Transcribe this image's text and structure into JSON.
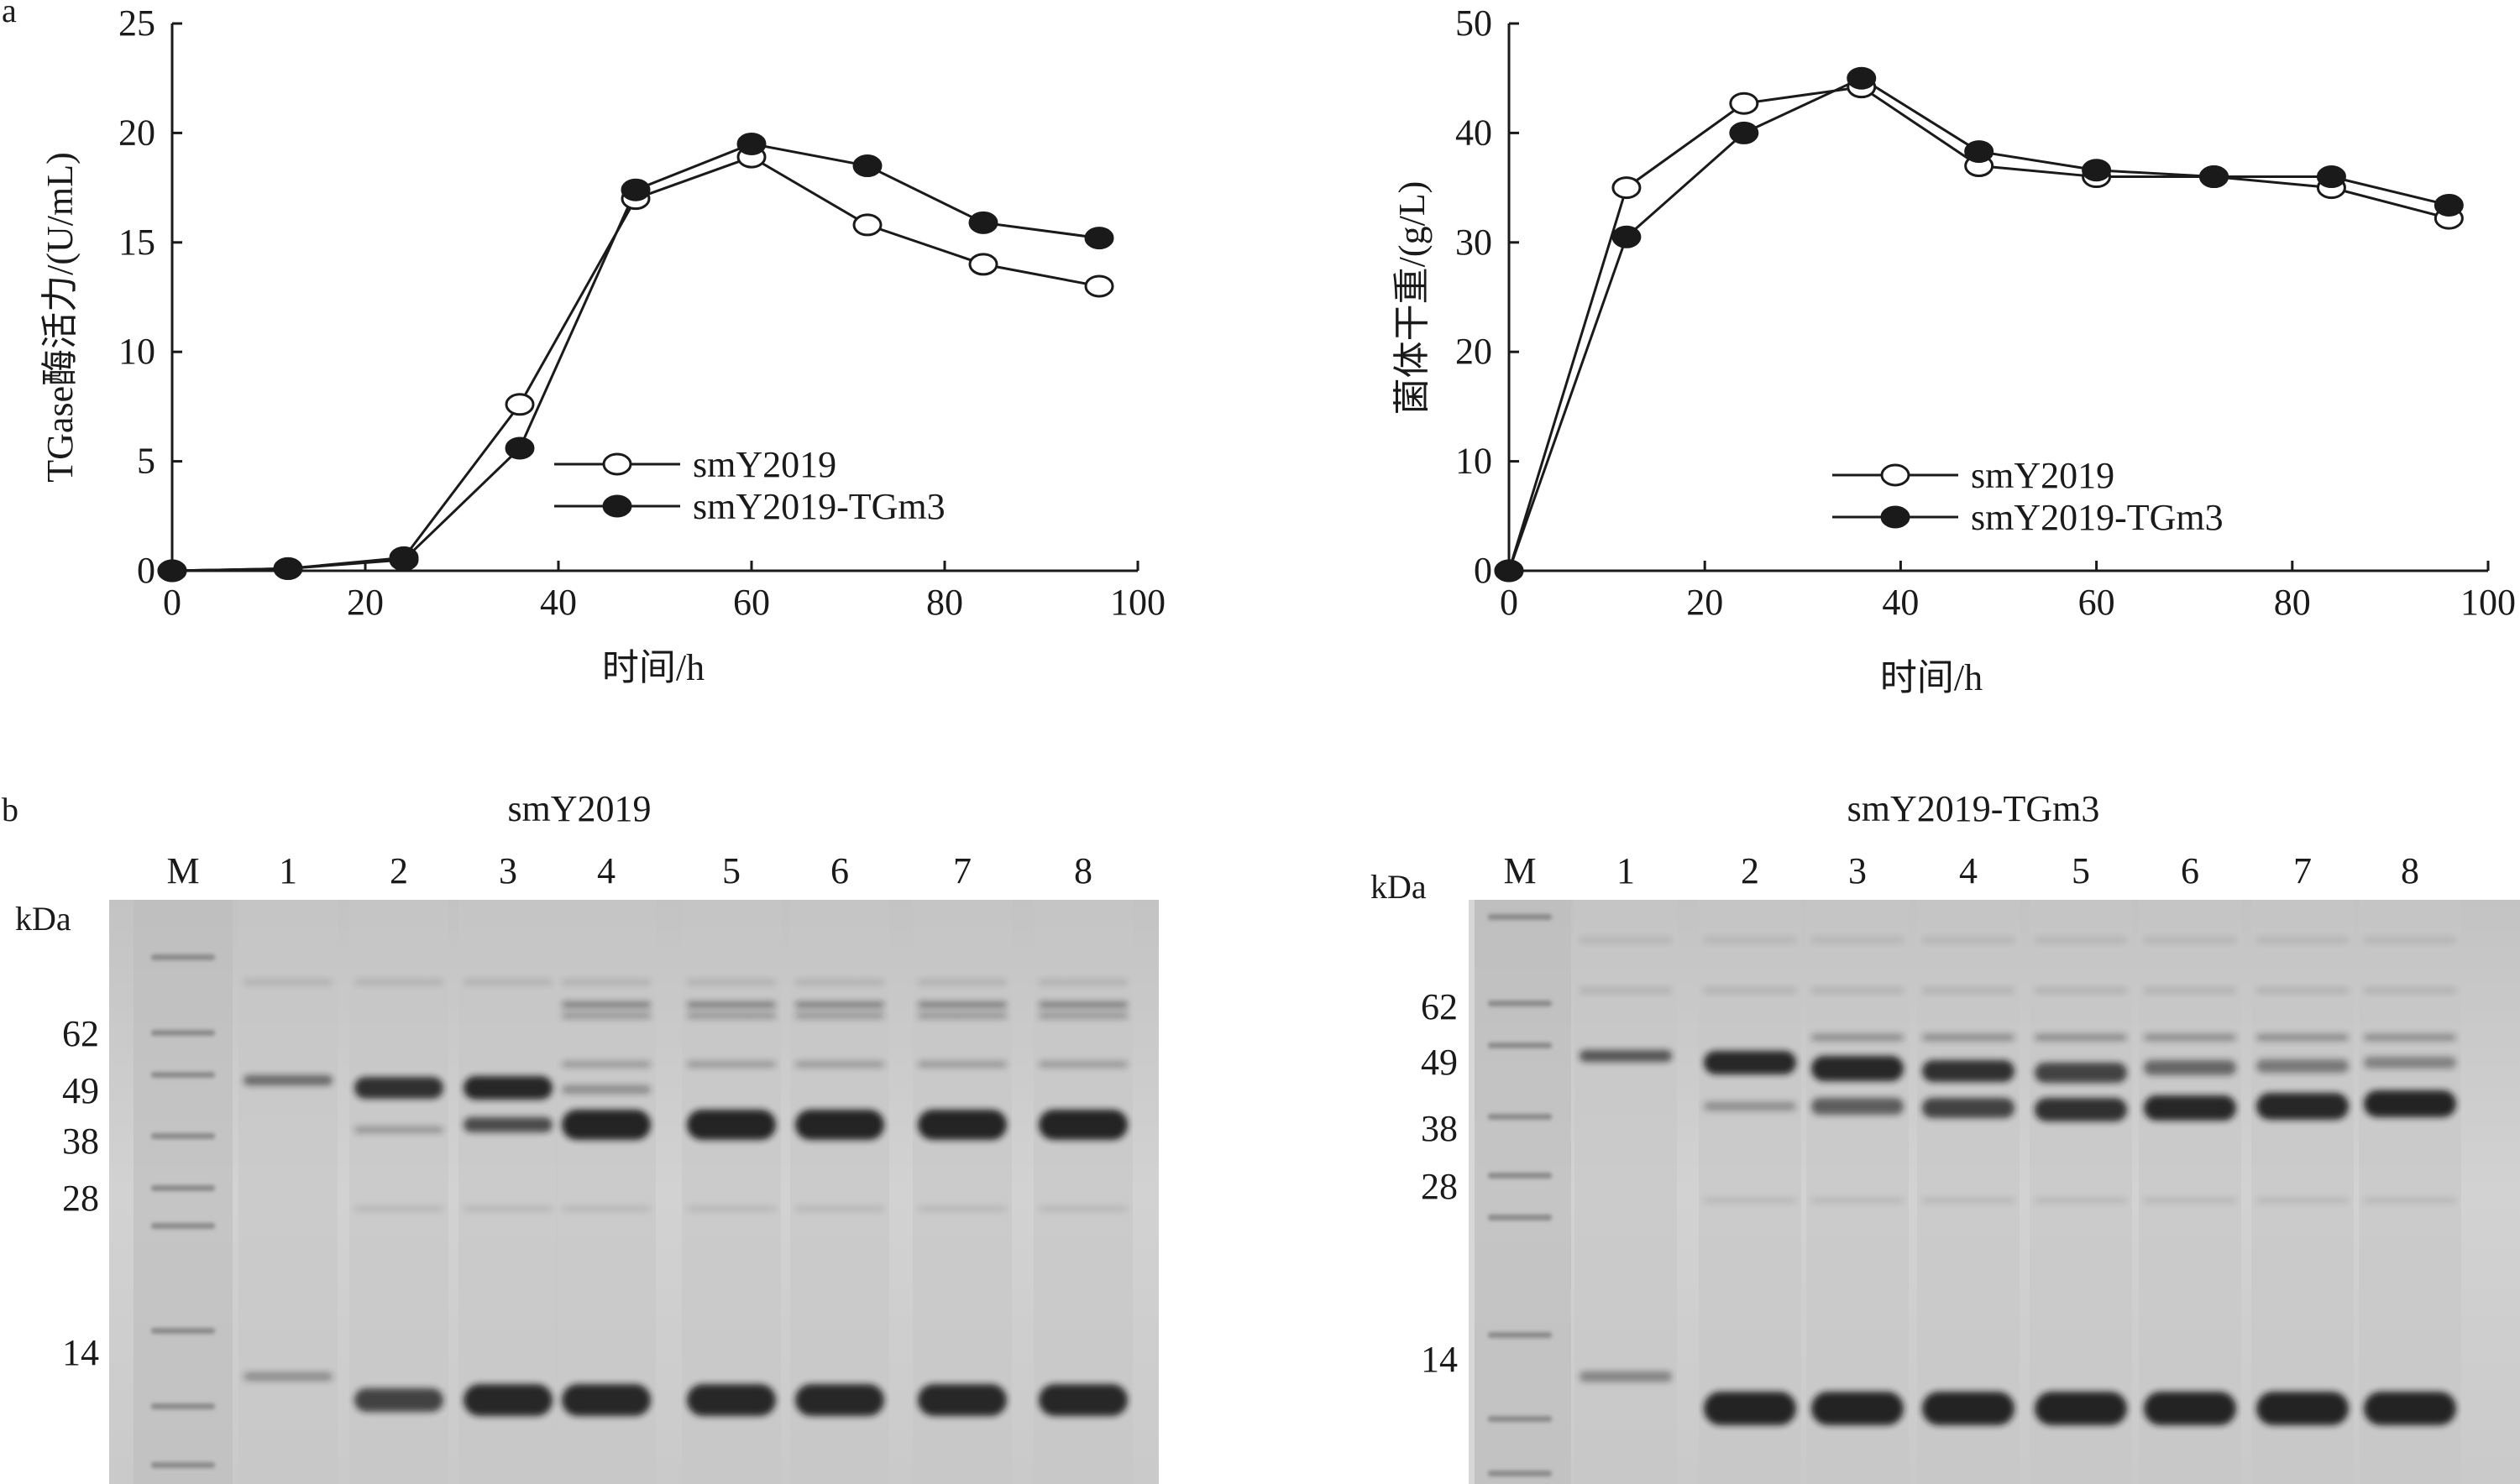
{
  "panel_labels": {
    "a": "a",
    "b": "b"
  },
  "chart_data": [
    {
      "type": "line",
      "panel": "a-left",
      "xlabel": "时间/h",
      "ylabel": "TGase酶活力/(U/mL)",
      "xlim": [
        0,
        100
      ],
      "ylim": [
        0,
        25
      ],
      "xticks": [
        "0",
        "20",
        "40",
        "60",
        "80",
        "100"
      ],
      "yticks": [
        "0",
        "5",
        "10",
        "15",
        "20",
        "25"
      ],
      "legend_position": "center-right",
      "x": [
        0,
        12,
        24,
        36,
        48,
        60,
        72,
        84,
        96
      ],
      "series": [
        {
          "name": "smY2019",
          "marker": "open-circle",
          "values": [
            0,
            0.1,
            0.6,
            7.6,
            17.0,
            18.9,
            15.8,
            14.0,
            13.0
          ]
        },
        {
          "name": "smY2019-TGm3",
          "marker": "filled-circle",
          "values": [
            0,
            0.1,
            0.5,
            5.6,
            17.4,
            19.5,
            18.5,
            15.9,
            15.2
          ]
        }
      ]
    },
    {
      "type": "line",
      "panel": "a-right",
      "xlabel": "时间/h",
      "ylabel": "菌体干重/(g/L)",
      "xlim": [
        0,
        100
      ],
      "ylim": [
        0,
        50
      ],
      "xticks": [
        "0",
        "20",
        "40",
        "60",
        "80",
        "100"
      ],
      "yticks": [
        "0",
        "10",
        "20",
        "30",
        "40",
        "50"
      ],
      "legend_position": "bottom-right",
      "x": [
        0,
        12,
        24,
        36,
        48,
        60,
        72,
        84,
        96
      ],
      "series": [
        {
          "name": "smY2019",
          "marker": "open-circle",
          "values": [
            0,
            35.0,
            42.7,
            44.2,
            37.0,
            36.0,
            36.0,
            35.0,
            32.2
          ]
        },
        {
          "name": "smY2019-TGm3",
          "marker": "filled-circle",
          "values": [
            0,
            30.5,
            40.0,
            45.0,
            38.3,
            36.6,
            36.0,
            36.0,
            33.4
          ]
        }
      ]
    }
  ],
  "gels": [
    {
      "title": "smY2019",
      "unit": "kDa",
      "lanes": [
        "M",
        "1",
        "2",
        "3",
        "4",
        "5",
        "6",
        "7",
        "8"
      ],
      "markers": [
        "62",
        "49",
        "38",
        "28",
        "14"
      ]
    },
    {
      "title": "smY2019-TGm3",
      "unit": "kDa",
      "lanes": [
        "M",
        "1",
        "2",
        "3",
        "4",
        "5",
        "6",
        "7",
        "8"
      ],
      "markers": [
        "62",
        "49",
        "38",
        "28",
        "14"
      ]
    }
  ],
  "colors": {
    "ink": "#1a1a1a",
    "gel_bg": "#cfcfcf",
    "band": "#141414"
  }
}
